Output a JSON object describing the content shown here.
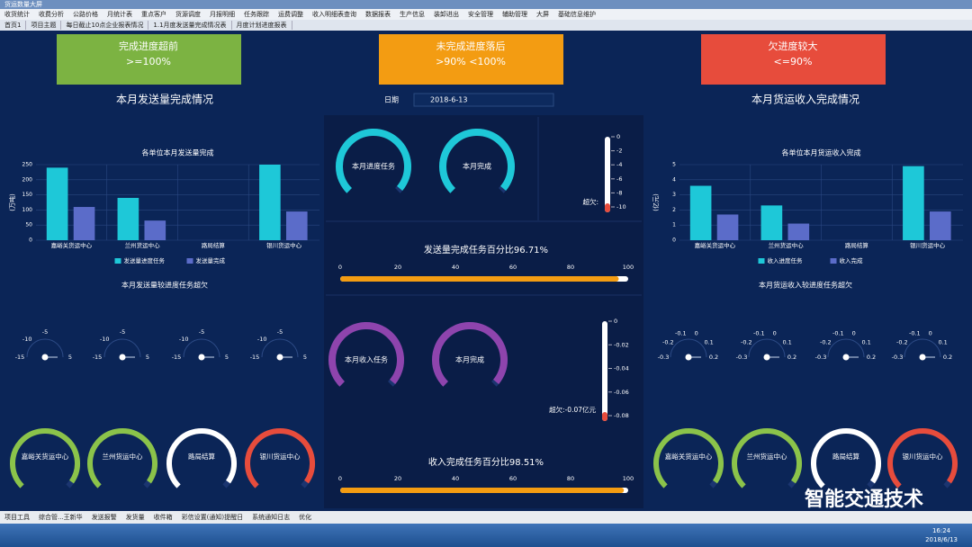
{
  "window_title": "货运数量大屏",
  "menu": [
    "收货统计",
    "收费分析",
    "公路价格",
    "月统计表",
    "重点客户",
    "货源调度",
    "月报明细",
    "任务跟踪",
    "运费调整",
    "收入明细表查询",
    "数据报表",
    "生产信息",
    "装卸进出",
    "安全管理",
    "辅助管理",
    "大屏",
    "基础信息维护"
  ],
  "tabs": [
    "首页1",
    "项目主题",
    "每日截止10点企业报表情况",
    "1.1月度发送量完成情况表",
    "月度计划进度报表"
  ],
  "status_cards": [
    {
      "title": "完成进度超前",
      "range": ">=100%",
      "color": "#7cb342"
    },
    {
      "title": "未完成进度落后",
      "range": ">90% <100%",
      "color": "#f39c12"
    },
    {
      "title": "欠进度较大",
      "range": "<=90%",
      "color": "#e74c3c"
    }
  ],
  "date": {
    "label": "日期",
    "value": "2018-6-13"
  },
  "left": {
    "title": "本月发送量完成情况",
    "chart": {
      "type": "bar",
      "title": "各单位本月发送量完成",
      "y_label": "(万吨)",
      "categories": [
        "嘉峪关货运中心",
        "兰州货运中心",
        "路局结算",
        "银川货运中心"
      ],
      "series": [
        {
          "name": "发送量进度任务",
          "color": "#1ec8d8",
          "values": [
            240,
            140,
            0,
            250
          ]
        },
        {
          "name": "发送量完成",
          "color": "#5b6cc9",
          "values": [
            110,
            65,
            0,
            95
          ]
        }
      ],
      "ylim": [
        0,
        250
      ],
      "yticks": [
        0,
        50,
        100,
        150,
        200,
        250
      ],
      "grid": true
    },
    "dials_title": "本月发送量较进度任务超欠",
    "dial_range": [
      -15,
      5
    ],
    "dial_ticks": [
      -15,
      -10,
      -5,
      5
    ],
    "rings": [
      {
        "name": "嘉峪关货运中心",
        "color": "#8bc34a"
      },
      {
        "name": "兰州货运中心",
        "color": "#8bc34a"
      },
      {
        "name": "路局结算",
        "color": "#ffffff"
      },
      {
        "name": "银川货运中心",
        "color": "#e74c3c"
      }
    ]
  },
  "center": {
    "send": {
      "gauges": [
        "本月进度任务",
        "本月完成"
      ],
      "gauge_color": "#1ec8d8",
      "thermo_ticks": [
        0,
        -2,
        -4,
        -6,
        -8,
        -10
      ],
      "thermo_label": "超欠:",
      "progress_label": "发送量完成任务百分比96.71%",
      "progress_value": 96.71,
      "progress_ticks": [
        0,
        20,
        40,
        60,
        80,
        100
      ]
    },
    "income": {
      "gauges": [
        "本月收入任务",
        "本月完成"
      ],
      "gauge_color": "#8e44ad",
      "thermo_ticks": [
        0,
        -0.02,
        -0.04,
        -0.06,
        -0.08
      ],
      "thermo_label": "超欠:-0.07亿元",
      "progress_label": "收入完成任务百分比98.51%",
      "progress_value": 98.51,
      "progress_ticks": [
        0,
        20,
        40,
        60,
        80,
        100
      ]
    }
  },
  "right": {
    "title": "本月货运收入完成情况",
    "chart": {
      "type": "bar",
      "title": "各单位本月货运收入完成",
      "y_label": "(亿元)",
      "categories": [
        "嘉峪关货运中心",
        "兰州货运中心",
        "路局结算",
        "银川货运中心"
      ],
      "series": [
        {
          "name": "收入进度任务",
          "color": "#1ec8d8",
          "values": [
            3.6,
            2.3,
            0,
            4.9
          ]
        },
        {
          "name": "收入完成",
          "color": "#5b6cc9",
          "values": [
            1.7,
            1.1,
            0,
            1.9
          ]
        }
      ],
      "ylim": [
        0,
        5
      ],
      "yticks": [
        0,
        1,
        2,
        3,
        4,
        5
      ],
      "grid": true
    },
    "dials_title": "本月货运收入较进度任务超欠",
    "dial_range": [
      -0.3,
      0.2
    ],
    "dial_ticks": [
      -0.3,
      -0.2,
      -0.1,
      0,
      0.1,
      0.2
    ],
    "rings": [
      {
        "name": "嘉峪关货运中心",
        "color": "#8bc34a"
      },
      {
        "name": "兰州货运中心",
        "color": "#8bc34a"
      },
      {
        "name": "路局结算",
        "color": "#ffffff"
      },
      {
        "name": "银川货运中心",
        "color": "#e74c3c"
      }
    ]
  },
  "statusbar": [
    "项目工具",
    "综合管...王新华",
    "发送报警",
    "发货量",
    "收件箱",
    "彩信设置(通知)提醒日",
    "系统通知日志",
    "优化"
  ],
  "taskbar": {
    "time": "16:24",
    "date": "2018/6/13"
  },
  "watermark": "智能交通技术"
}
